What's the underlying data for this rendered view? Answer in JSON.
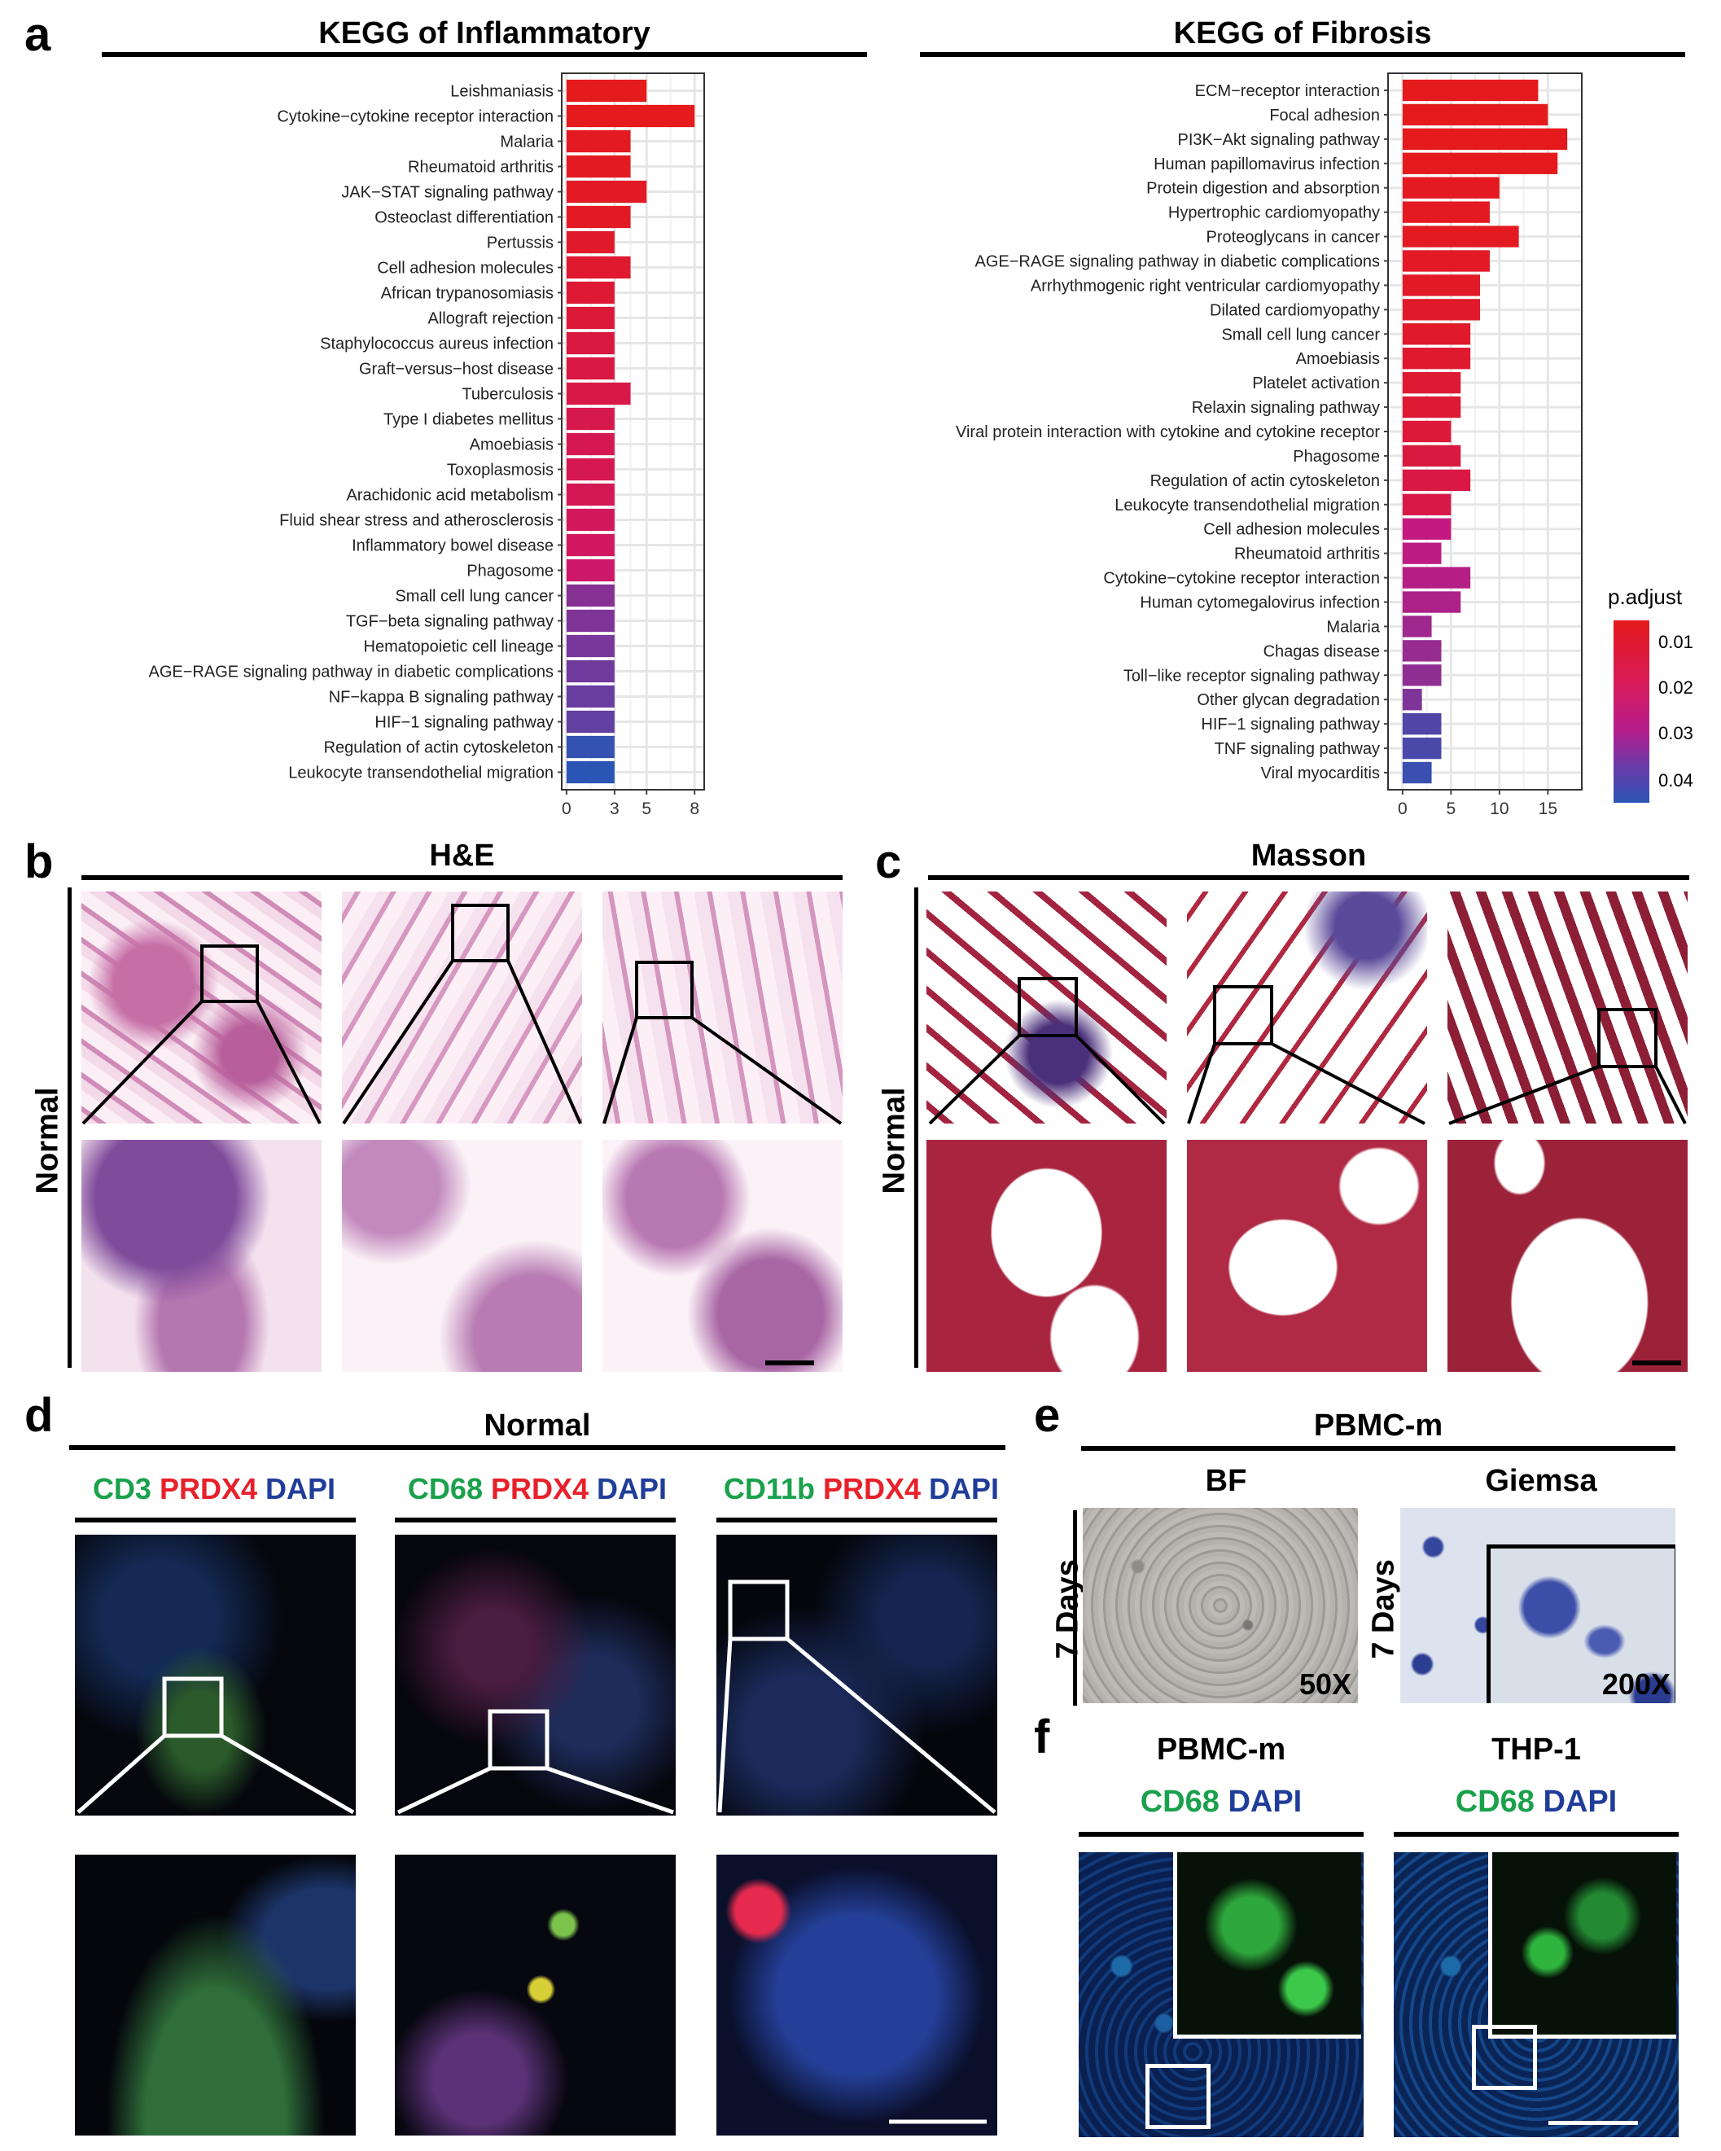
{
  "panel_a": {
    "label": "a",
    "legend": {
      "title": "p.adjust",
      "ticks": [
        "0.01",
        "0.02",
        "0.03",
        "0.04"
      ],
      "colors": {
        "low": "#e41a1c",
        "mid": "#c8177f",
        "high": "#2b55b4"
      }
    }
  },
  "chart_data": [
    {
      "type": "bar",
      "orientation": "horizontal",
      "title": "KEGG of Inflammatory",
      "categories": [
        "Leishmaniasis",
        "Cytokine−cytokine receptor interaction",
        "Malaria",
        "Rheumatoid arthritis",
        "JAK−STAT signaling pathway",
        "Osteoclast differentiation",
        "Pertussis",
        "Cell adhesion molecules",
        "African trypanosomiasis",
        "Allograft rejection",
        "Staphylococcus aureus infection",
        "Graft−versus−host disease",
        "Tuberculosis",
        "Type I diabetes mellitus",
        "Amoebiasis",
        "Toxoplasmosis",
        "Arachidonic acid metabolism",
        "Fluid shear stress and atherosclerosis",
        "Inflammatory bowel disease",
        "Phagosome",
        "Small cell lung cancer",
        "TGF−beta signaling pathway",
        "Hematopoietic cell lineage",
        "AGE−RAGE signaling pathway in diabetic complications",
        "NF−kappa B signaling pathway",
        "HIF−1 signaling pathway",
        "Regulation of actin cytoskeleton",
        "Leukocyte transendothelial migration"
      ],
      "values": [
        5,
        8,
        4,
        4,
        5,
        4,
        3,
        4,
        3,
        3,
        3,
        3,
        4,
        3,
        3,
        3,
        3,
        3,
        3,
        3,
        3,
        3,
        3,
        3,
        3,
        3,
        3,
        3
      ],
      "p_adjust": [
        0.004,
        0.004,
        0.005,
        0.005,
        0.006,
        0.006,
        0.007,
        0.008,
        0.009,
        0.01,
        0.011,
        0.012,
        0.013,
        0.014,
        0.015,
        0.015,
        0.016,
        0.017,
        0.018,
        0.02,
        0.033,
        0.034,
        0.035,
        0.036,
        0.037,
        0.038,
        0.044,
        0.045
      ],
      "xticks": [
        0,
        3,
        5,
        8
      ],
      "xlim": [
        -0.3,
        8.6
      ],
      "grid": true
    },
    {
      "type": "bar",
      "orientation": "horizontal",
      "title": "KEGG of Fibrosis",
      "categories": [
        "ECM−receptor interaction",
        "Focal adhesion",
        "PI3K−Akt signaling pathway",
        "Human papillomavirus infection",
        "Protein digestion and absorption",
        "Hypertrophic cardiomyopathy",
        "Proteoglycans in cancer",
        "AGE−RAGE signaling pathway in diabetic complications",
        "Arrhythmogenic right ventricular cardiomyopathy",
        "Dilated cardiomyopathy",
        "Small cell lung cancer",
        "Amoebiasis",
        "Platelet activation",
        "Relaxin signaling pathway",
        "Viral protein interaction with cytokine and cytokine receptor",
        "Phagosome",
        "Regulation of actin cytoskeleton",
        "Leukocyte transendothelial migration",
        "Cell adhesion molecules",
        "Rheumatoid arthritis",
        "Cytokine−cytokine receptor interaction",
        "Human cytomegalovirus infection",
        "Malaria",
        "Chagas disease",
        "Toll−like receptor signaling pathway",
        "Other glycan degradation",
        "HIF−1 signaling pathway",
        "TNF signaling pathway",
        "Viral myocarditis"
      ],
      "values": [
        14,
        15,
        17,
        16,
        10,
        9,
        12,
        9,
        8,
        8,
        7,
        7,
        6,
        6,
        5,
        6,
        7,
        5,
        5,
        4,
        7,
        6,
        3,
        4,
        4,
        2,
        4,
        4,
        3
      ],
      "p_adjust": [
        0.004,
        0.004,
        0.004,
        0.004,
        0.005,
        0.005,
        0.005,
        0.006,
        0.006,
        0.007,
        0.007,
        0.008,
        0.009,
        0.009,
        0.01,
        0.011,
        0.012,
        0.013,
        0.025,
        0.026,
        0.027,
        0.028,
        0.03,
        0.031,
        0.032,
        0.034,
        0.04,
        0.041,
        0.043
      ],
      "xticks": [
        0,
        5,
        10,
        15
      ],
      "xlim": [
        -1.5,
        18.5
      ],
      "grid": true
    }
  ],
  "panel_b": {
    "label": "b",
    "title": "H&E",
    "row_label": "Normal"
  },
  "panel_c": {
    "label": "c",
    "title": "Masson",
    "row_label": "Normal"
  },
  "panel_d": {
    "label": "d",
    "title": "Normal",
    "col_labels": [
      {
        "marker": "CD3",
        "target": "PRDX4",
        "stain": "DAPI"
      },
      {
        "marker": "CD68",
        "target": "PRDX4",
        "stain": "DAPI"
      },
      {
        "marker": "CD11b",
        "target": "PRDX4",
        "stain": "DAPI"
      }
    ]
  },
  "panel_e": {
    "label": "e",
    "title": "PBMC-m",
    "col_labels": [
      "BF",
      "Giemsa"
    ],
    "row_label": "7 Days",
    "magnifications": [
      "50X",
      "200X"
    ]
  },
  "panel_f": {
    "label": "f",
    "col_titles": [
      "PBMC-m",
      "THP-1"
    ],
    "stain_labels": [
      {
        "marker": "CD68",
        "stain": "DAPI"
      },
      {
        "marker": "CD68",
        "stain": "DAPI"
      }
    ]
  },
  "colors": {
    "green_text": "#1aa14b",
    "red_text": "#e8202a",
    "blue_text": "#1f3d99"
  }
}
